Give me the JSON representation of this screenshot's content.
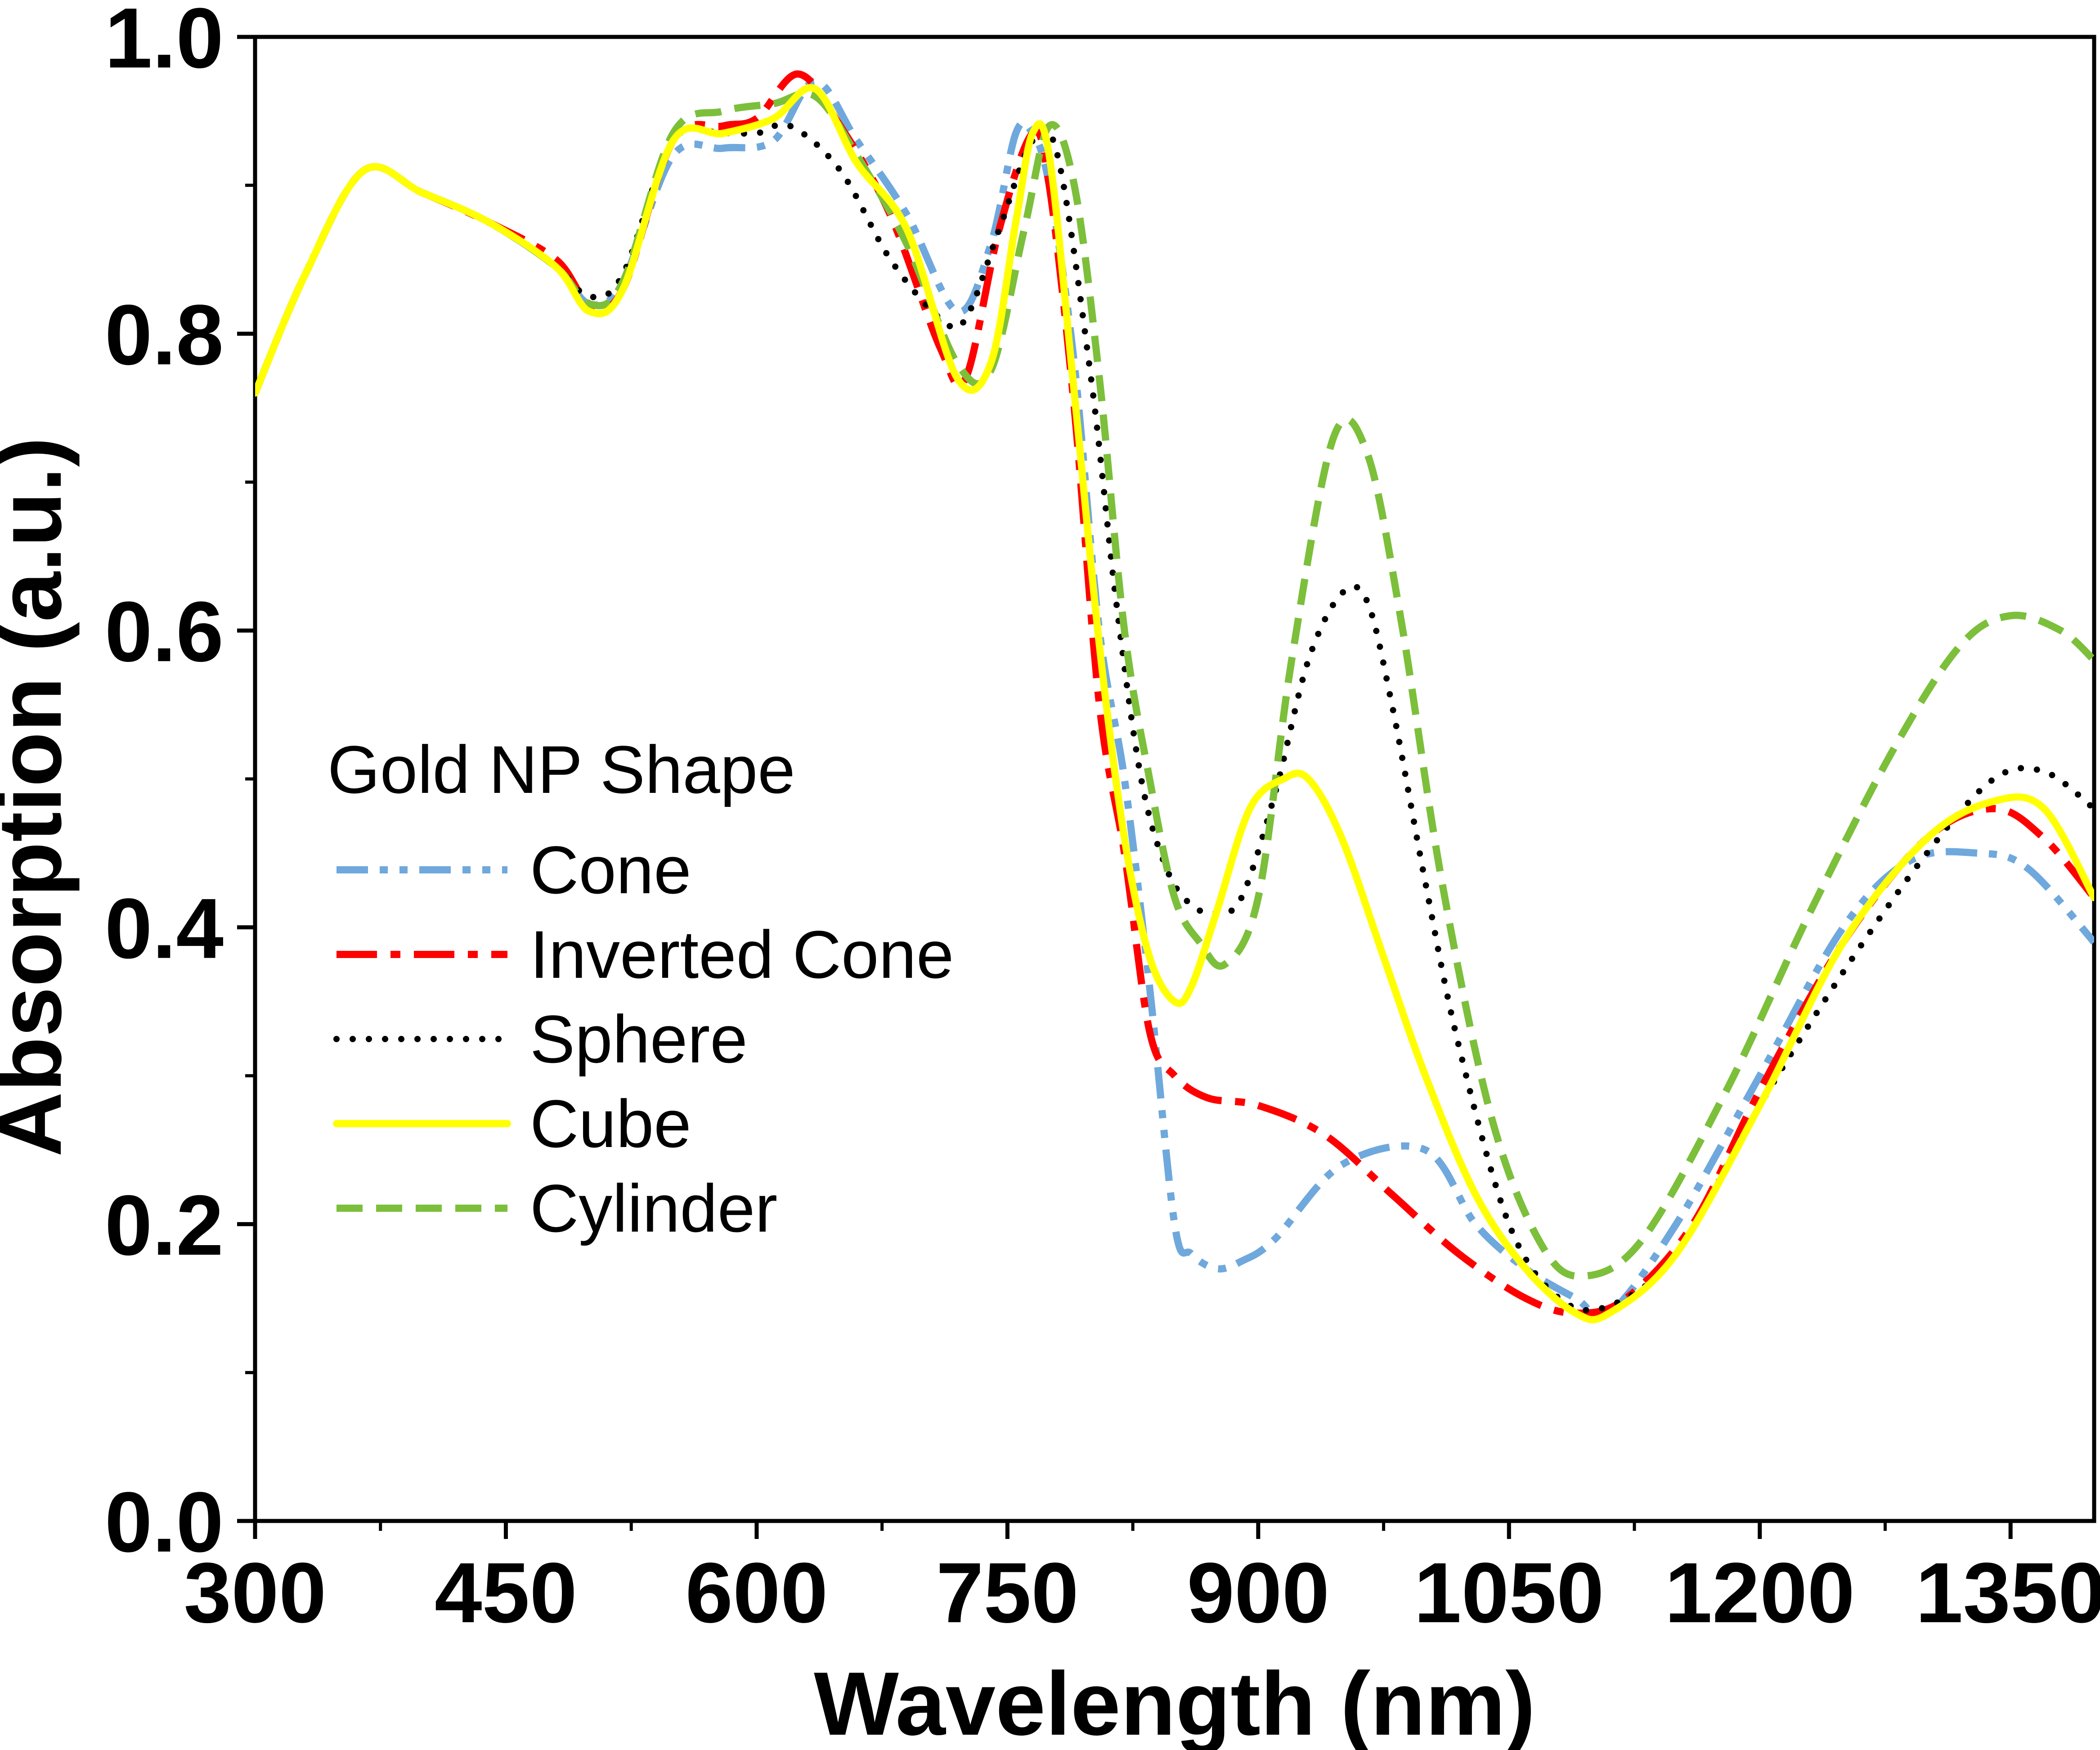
{
  "chart_data": {
    "type": "line",
    "title": "",
    "xlabel": "Wavelength (nm)",
    "ylabel": "Absorption (a.u.)",
    "xlim": [
      300,
      1400
    ],
    "ylim": [
      0.0,
      1.0
    ],
    "xticks": [
      300,
      450,
      600,
      750,
      900,
      1050,
      1200,
      1350
    ],
    "xtick_labels": [
      "300",
      "450",
      "600",
      "750",
      "900",
      "1050",
      "1200",
      "1350"
    ],
    "yticks": [
      0.0,
      0.2,
      0.4,
      0.6,
      0.8,
      1.0
    ],
    "ytick_labels": [
      "0.0",
      "0.2",
      "0.4",
      "0.6",
      "0.8",
      "1.0"
    ],
    "legend_title": "Gold NP Shape",
    "legend_position": "center-left",
    "series": [
      {
        "name": "Cone",
        "color": "#6fa8dc",
        "dash": "dash-dot-dot",
        "x": [
          300,
          330,
          365,
          400,
          440,
          480,
          500,
          520,
          550,
          580,
          610,
          635,
          660,
          690,
          720,
          740,
          755,
          765,
          775,
          790,
          805,
          820,
          835,
          850,
          860,
          875,
          890,
          910,
          950,
          1000,
          1030,
          1060,
          1090,
          1110,
          1150,
          1200,
          1250,
          1290,
          1330,
          1360,
          1400
        ],
        "y": [
          0.76,
          0.84,
          0.91,
          0.895,
          0.875,
          0.845,
          0.82,
          0.835,
          0.92,
          0.925,
          0.93,
          0.97,
          0.93,
          0.88,
          0.815,
          0.86,
          0.935,
          0.935,
          0.9,
          0.78,
          0.6,
          0.5,
          0.36,
          0.2,
          0.18,
          0.17,
          0.175,
          0.19,
          0.24,
          0.25,
          0.2,
          0.17,
          0.15,
          0.14,
          0.2,
          0.3,
          0.4,
          0.445,
          0.45,
          0.44,
          0.39
        ]
      },
      {
        "name": "Inverted Cone",
        "color": "#ff0000",
        "dash": "dash-dot",
        "x": [
          300,
          330,
          365,
          400,
          440,
          480,
          500,
          520,
          550,
          580,
          600,
          625,
          650,
          680,
          710,
          725,
          745,
          765,
          775,
          790,
          805,
          820,
          835,
          850,
          870,
          900,
          940,
          980,
          1020,
          1060,
          1090,
          1120,
          1160,
          1200,
          1250,
          1300,
          1340,
          1370,
          1400
        ],
        "y": [
          0.76,
          0.84,
          0.91,
          0.895,
          0.875,
          0.85,
          0.82,
          0.83,
          0.93,
          0.94,
          0.945,
          0.975,
          0.94,
          0.88,
          0.79,
          0.77,
          0.87,
          0.935,
          0.9,
          0.75,
          0.55,
          0.45,
          0.33,
          0.3,
          0.285,
          0.28,
          0.26,
          0.22,
          0.18,
          0.15,
          0.14,
          0.15,
          0.2,
          0.29,
          0.39,
          0.46,
          0.48,
          0.46,
          0.42
        ]
      },
      {
        "name": "Sphere",
        "color": "#000000",
        "dash": "dot",
        "x": [
          300,
          330,
          365,
          400,
          440,
          480,
          500,
          520,
          550,
          580,
          600,
          620,
          650,
          680,
          710,
          725,
          745,
          765,
          780,
          800,
          815,
          830,
          845,
          860,
          875,
          890,
          910,
          930,
          950,
          965,
          980,
          1000,
          1020,
          1050,
          1080,
          1110,
          1150,
          1200,
          1250,
          1300,
          1340,
          1370,
          1400
        ],
        "y": [
          0.76,
          0.84,
          0.91,
          0.895,
          0.875,
          0.845,
          0.825,
          0.84,
          0.93,
          0.935,
          0.935,
          0.94,
          0.91,
          0.85,
          0.81,
          0.81,
          0.87,
          0.93,
          0.92,
          0.77,
          0.62,
          0.5,
          0.44,
          0.415,
          0.41,
          0.42,
          0.49,
          0.58,
          0.625,
          0.62,
          0.55,
          0.43,
          0.32,
          0.2,
          0.15,
          0.145,
          0.18,
          0.28,
          0.37,
          0.45,
          0.5,
          0.505,
          0.48
        ]
      },
      {
        "name": "Cube",
        "color": "#ffff00",
        "dash": "solid",
        "x": [
          300,
          330,
          365,
          400,
          440,
          480,
          500,
          520,
          550,
          580,
          610,
          635,
          660,
          690,
          720,
          740,
          755,
          765,
          775,
          790,
          805,
          820,
          835,
          850,
          860,
          875,
          895,
          915,
          930,
          950,
          975,
          1000,
          1030,
          1060,
          1090,
          1110,
          1150,
          1200,
          1250,
          1300,
          1340,
          1370,
          1400
        ],
        "y": [
          0.76,
          0.84,
          0.91,
          0.895,
          0.875,
          0.845,
          0.815,
          0.83,
          0.93,
          0.935,
          0.945,
          0.965,
          0.915,
          0.87,
          0.77,
          0.78,
          0.875,
          0.935,
          0.92,
          0.76,
          0.59,
          0.46,
          0.38,
          0.35,
          0.36,
          0.41,
          0.48,
          0.5,
          0.5,
          0.46,
          0.38,
          0.3,
          0.22,
          0.17,
          0.14,
          0.14,
          0.18,
          0.28,
          0.39,
          0.46,
          0.485,
          0.48,
          0.42
        ]
      },
      {
        "name": "Cylinder",
        "color": "#7cbf3b",
        "dash": "dash",
        "x": [
          300,
          330,
          365,
          400,
          440,
          480,
          500,
          520,
          550,
          580,
          610,
          635,
          660,
          690,
          720,
          740,
          760,
          775,
          790,
          805,
          820,
          835,
          850,
          865,
          880,
          900,
          920,
          945,
          965,
          985,
          1010,
          1040,
          1070,
          1095,
          1130,
          1180,
          1230,
          1280,
          1320,
          1350,
          1380,
          1400
        ],
        "y": [
          0.76,
          0.84,
          0.91,
          0.895,
          0.875,
          0.845,
          0.82,
          0.835,
          0.935,
          0.95,
          0.955,
          0.96,
          0.92,
          0.86,
          0.78,
          0.775,
          0.87,
          0.94,
          0.9,
          0.77,
          0.6,
          0.5,
          0.42,
          0.39,
          0.375,
          0.42,
          0.58,
          0.73,
          0.72,
          0.61,
          0.43,
          0.27,
          0.185,
          0.165,
          0.19,
          0.29,
          0.41,
          0.52,
          0.59,
          0.61,
          0.6,
          0.58
        ]
      }
    ]
  }
}
